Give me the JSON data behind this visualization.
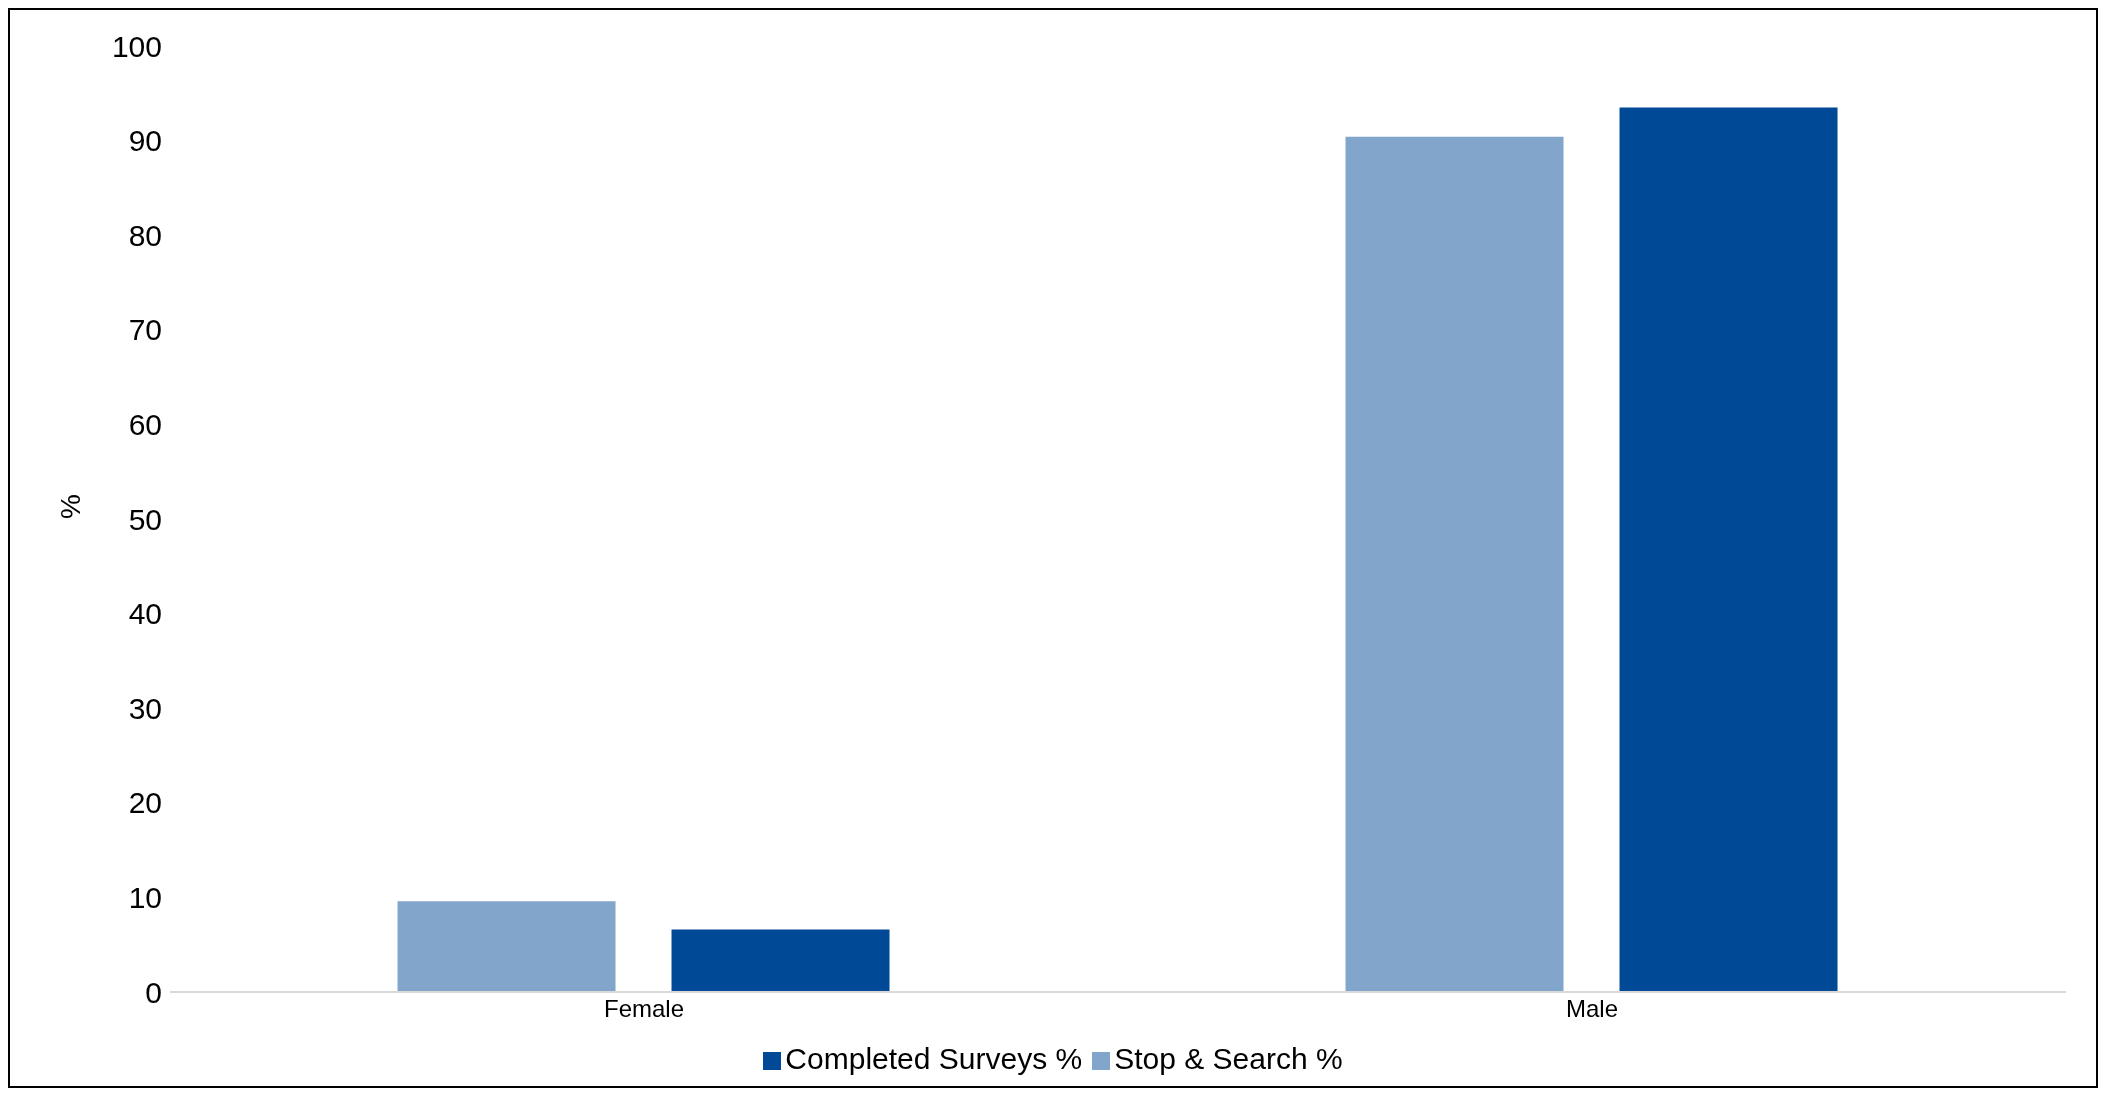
{
  "chart_data": {
    "type": "bar",
    "ylabel": "%",
    "categories": [
      "Female",
      "Male"
    ],
    "series": [
      {
        "name": "Stop & Search %",
        "color": "#82a5cb",
        "values": [
          9.6,
          90.4
        ]
      },
      {
        "name": "Completed Surveys %",
        "color": "#004996",
        "values": [
          6.6,
          93.5
        ]
      }
    ],
    "ylim": [
      0,
      100
    ],
    "yticks": [
      0,
      10,
      20,
      30,
      40,
      50,
      60,
      70,
      80,
      90,
      100
    ],
    "grid": false,
    "legend": "bottom"
  }
}
